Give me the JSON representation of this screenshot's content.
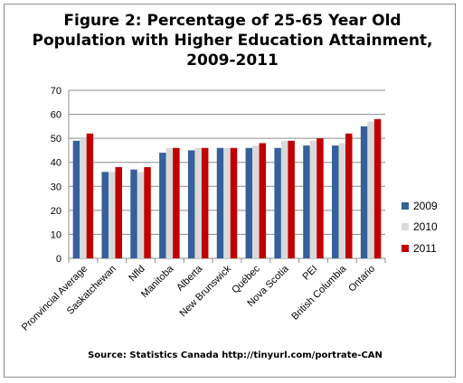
{
  "title_lines": [
    "Figure 2: Percentage of 25-65 Year Old",
    "Population with Higher Education Attainment,",
    "2009-2011"
  ],
  "source_text": "Source: Statistics Canada http://tinyurl.com/portrate-CAN",
  "colors": {
    "2009": "#35609a",
    "2010": "#d9d9d9",
    "2011": "#c00000",
    "grid": "#8c8c8c",
    "axis": "#8c8c8c"
  },
  "chart_data": {
    "type": "bar",
    "title": "Figure 2: Percentage of 25-65 Year Old Population with Higher Education Attainment, 2009-2011",
    "categories": [
      "Pronvincial Average",
      "Saskatchewan",
      "Nfld",
      "Manitoba",
      "Alberta",
      "New Brunswick",
      "Québec",
      "Nova Scotia",
      "PEI",
      "British Columbia",
      "Ontario"
    ],
    "series": [
      {
        "name": "2009",
        "values": [
          49,
          36,
          37,
          44,
          45,
          46,
          46,
          46,
          47,
          47,
          55
        ]
      },
      {
        "name": "2010",
        "values": [
          50,
          36,
          36,
          46,
          46,
          46,
          47,
          49,
          49,
          48,
          57
        ]
      },
      {
        "name": "2011",
        "values": [
          52,
          38,
          38,
          46,
          46,
          46,
          48,
          49,
          50,
          52,
          58
        ]
      }
    ],
    "ylim": [
      0,
      70
    ],
    "yticks": [
      0,
      10,
      20,
      30,
      40,
      50,
      60,
      70
    ],
    "xlabel": "",
    "ylabel": "",
    "grid": true,
    "legend": "right"
  }
}
